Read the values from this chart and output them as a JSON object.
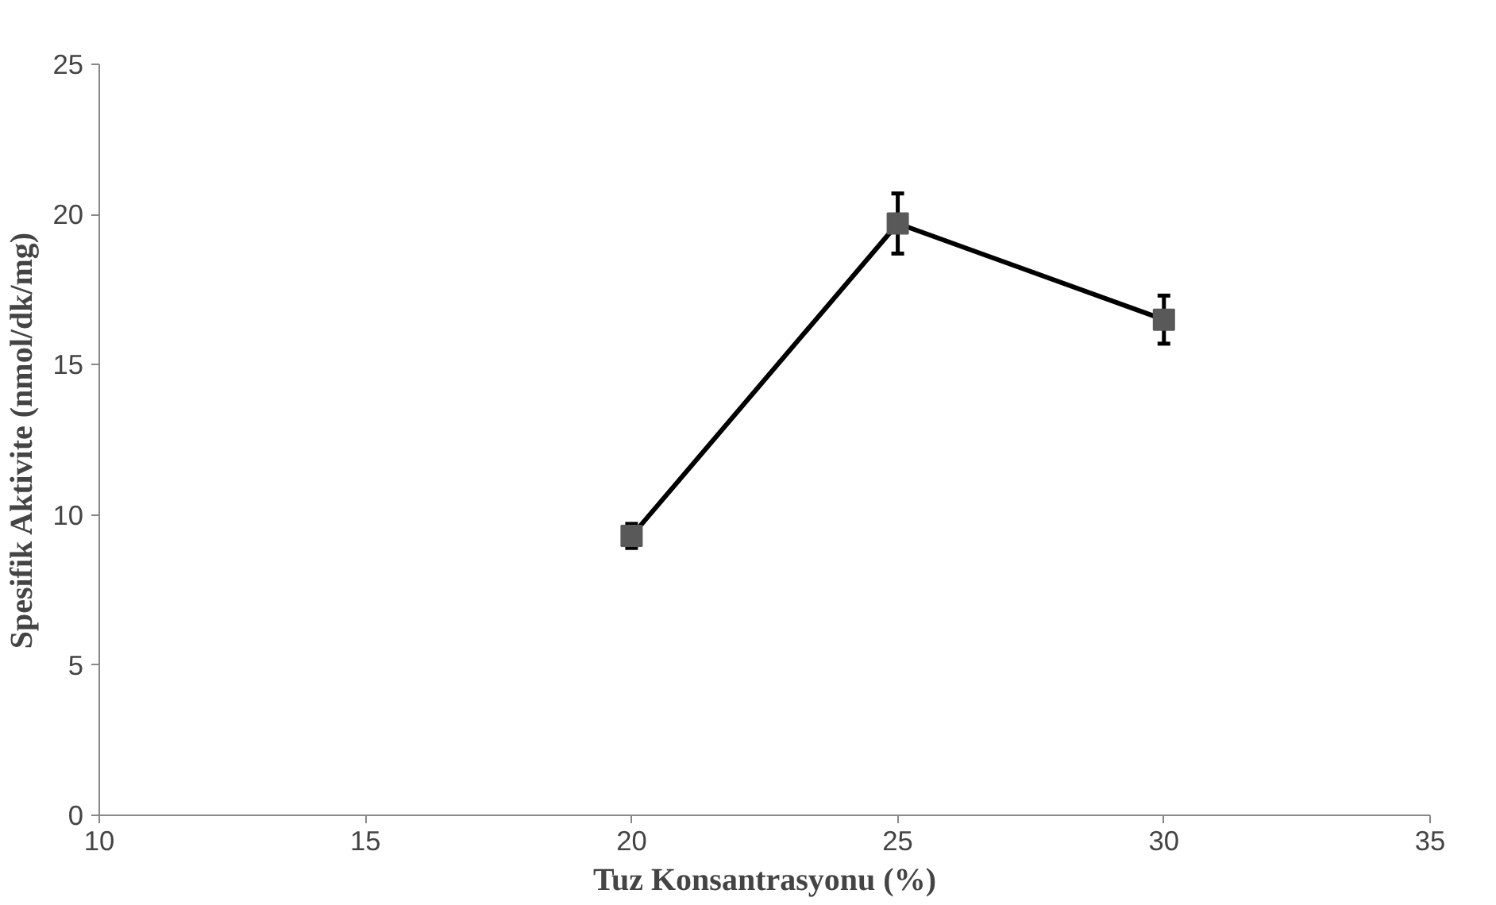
{
  "chart_data": {
    "type": "line",
    "xlabel": "Tuz Konsantrasyonu (%)",
    "ylabel": "Spesifik Aktivite (nmol/dk/mg)",
    "x": [
      20,
      25,
      30
    ],
    "series": [
      {
        "color": "#000000",
        "values": [
          9.3,
          19.7,
          16.5
        ],
        "errors": [
          0.4,
          1.0,
          0.8
        ]
      }
    ],
    "marker": "square",
    "xlim": [
      10,
      35
    ],
    "ylim": [
      0,
      25
    ],
    "xticks": [
      10,
      15,
      20,
      25,
      30,
      35
    ],
    "yticks": [
      0,
      5,
      10,
      15,
      20,
      25
    ],
    "grid": false
  }
}
